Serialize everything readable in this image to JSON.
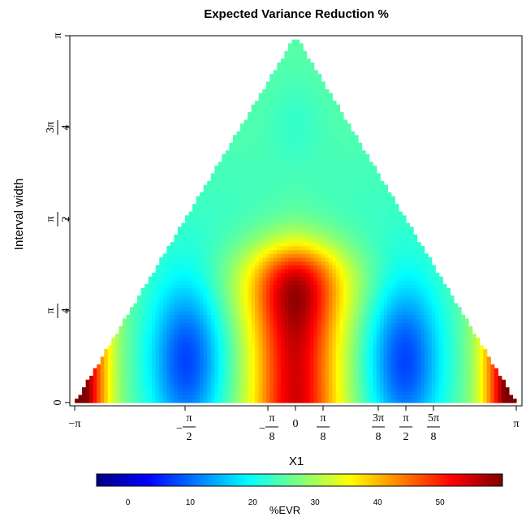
{
  "chart_data": {
    "type": "heatmap",
    "title": "Expected Variance Reduction %",
    "xlabel": "X1",
    "ylabel": "Interval width",
    "xlim": [
      -3.14159,
      3.14159
    ],
    "ylim": [
      0,
      3.14159
    ],
    "x_ticks": [
      {
        "value": -3.14159,
        "label": "−π"
      },
      {
        "value": -1.5708,
        "num": "π",
        "den": "2",
        "neg": true
      },
      {
        "value": -0.3927,
        "num": "π",
        "den": "8",
        "neg": true
      },
      {
        "value": 0,
        "label": "0"
      },
      {
        "value": 0.3927,
        "num": "π",
        "den": "8",
        "neg": false
      },
      {
        "value": 1.1781,
        "num": "3π",
        "den": "8",
        "neg": false
      },
      {
        "value": 1.5708,
        "num": "π",
        "den": "2",
        "neg": false
      },
      {
        "value": 1.9635,
        "num": "5π",
        "den": "8",
        "neg": false
      },
      {
        "value": 3.14159,
        "label": "π"
      }
    ],
    "y_ticks": [
      {
        "value": 0,
        "label": "0"
      },
      {
        "value": 0.7854,
        "num": "π",
        "den": "4"
      },
      {
        "value": 1.5708,
        "num": "π",
        "den": "2"
      },
      {
        "value": 2.3562,
        "num": "3π",
        "den": "4"
      },
      {
        "value": 3.14159,
        "label": "π"
      }
    ],
    "colorbar": {
      "label": "%EVR",
      "range": [
        -5,
        60
      ],
      "ticks": [
        0,
        10,
        20,
        30,
        40,
        50
      ],
      "colors": [
        "#00007f",
        "#0000ff",
        "#007fff",
        "#00ffff",
        "#7fff7f",
        "#ffff00",
        "#ff7f00",
        "#ff0000",
        "#7f0000"
      ]
    },
    "region": "triangle: 0 <= interval width <= pi - |X1|",
    "grid": false
  }
}
